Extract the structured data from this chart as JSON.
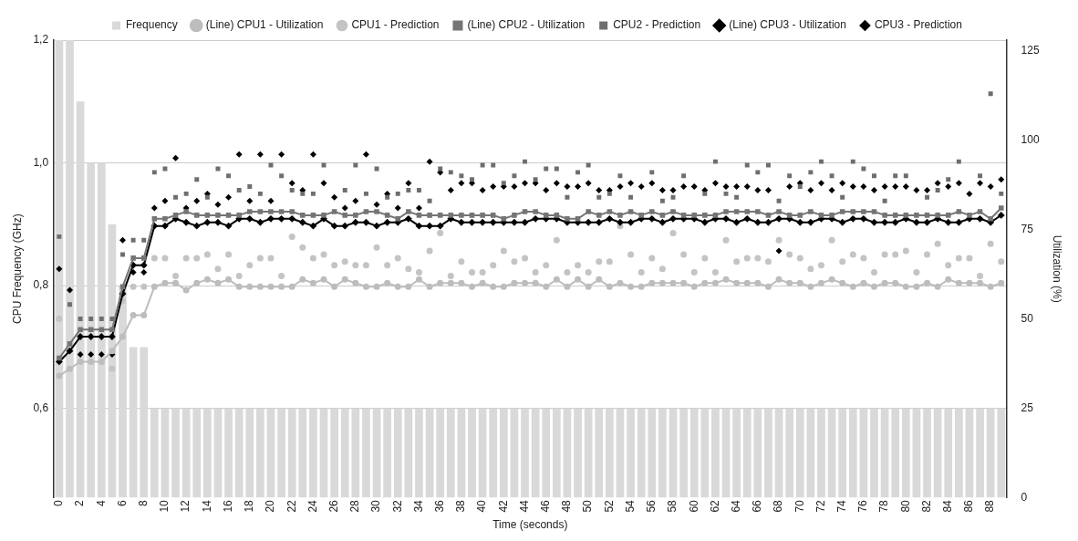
{
  "chart_data": {
    "type": "line",
    "xlabel": "Time (seconds)",
    "ylabel": "CPU Frequency (GHz)",
    "y2label": "Utilization (%)",
    "categories": [
      "0",
      null,
      "2",
      null,
      "4",
      null,
      "6",
      null,
      "8",
      null,
      "10",
      null,
      "12",
      null,
      "14",
      null,
      "16",
      null,
      "18",
      null,
      "20",
      null,
      "22",
      null,
      "24",
      null,
      "26",
      null,
      "28",
      null,
      "30",
      null,
      "32",
      null,
      "34",
      null,
      "36",
      null,
      "38",
      null,
      "40",
      null,
      "42",
      null,
      "44",
      null,
      "46",
      null,
      "48",
      null,
      "50",
      null,
      "52",
      null,
      "54",
      null,
      "56",
      null,
      "58",
      null,
      "60",
      null,
      "62",
      null,
      "64",
      null,
      "66",
      null,
      "68",
      null,
      "70",
      null,
      "72",
      null,
      "74",
      null,
      "76",
      null,
      "78",
      null,
      "80",
      null,
      "82",
      null,
      "84",
      null,
      "86",
      null,
      "88",
      null
    ],
    "ylim": [
      0.455,
      1.2
    ],
    "yticks": [
      {
        "value": 0.6,
        "label": "0,6"
      },
      {
        "value": 0.8,
        "label": "0,8"
      },
      {
        "value": 1.0,
        "label": "1,0"
      },
      {
        "value": 1.2,
        "label": "1,2"
      }
    ],
    "y2lim": [
      0,
      128
    ],
    "y2ticks": [
      0,
      25,
      50,
      75,
      100,
      125
    ],
    "grid": "y",
    "legend": "top",
    "series": [
      {
        "name": "Frequency",
        "type": "bar",
        "color": "#d9d9d9",
        "values": [
          1.2,
          1.2,
          1.1,
          1.0,
          1.0,
          0.9,
          0.8,
          0.7,
          0.7,
          0.6,
          0.6,
          0.6,
          0.6,
          0.6,
          0.6,
          0.6,
          0.6,
          0.6,
          0.6,
          0.6,
          0.6,
          0.6,
          0.6,
          0.6,
          0.6,
          0.6,
          0.6,
          0.6,
          0.6,
          0.6,
          0.6,
          0.6,
          0.6,
          0.6,
          0.6,
          0.6,
          0.6,
          0.6,
          0.6,
          0.6,
          0.6,
          0.6,
          0.6,
          0.6,
          0.6,
          0.6,
          0.6,
          0.6,
          0.6,
          0.6,
          0.6,
          0.6,
          0.6,
          0.6,
          0.6,
          0.6,
          0.6,
          0.6,
          0.6,
          0.6,
          0.6,
          0.6,
          0.6,
          0.6,
          0.6,
          0.6,
          0.6,
          0.6,
          0.6,
          0.6,
          0.6,
          0.6,
          0.6,
          0.6,
          0.6,
          0.6,
          0.6,
          0.6,
          0.6,
          0.6,
          0.6,
          0.6,
          0.6,
          0.6,
          0.6,
          0.6,
          0.6,
          0.6,
          0.6,
          0.6
        ]
      },
      {
        "name": "(Line) CPU1 - Utilization",
        "axis": "y2",
        "marker": "circle",
        "color": "#bdbdbd",
        "values": [
          34,
          36,
          38,
          38,
          38,
          41,
          45,
          51,
          51,
          59,
          60,
          60,
          58,
          60,
          61,
          60,
          61,
          59,
          59,
          59,
          59,
          59,
          59,
          61,
          60,
          61,
          59,
          61,
          60,
          59,
          59,
          60,
          59,
          59,
          61,
          59,
          60,
          60,
          60,
          59,
          60,
          59,
          59,
          60,
          60,
          60,
          59,
          61,
          59,
          61,
          59,
          61,
          59,
          60,
          59,
          59,
          60,
          60,
          60,
          60,
          59,
          60,
          60,
          61,
          60,
          60,
          60,
          59,
          61,
          60,
          60,
          59,
          60,
          61,
          60,
          59,
          60,
          59,
          60,
          60,
          59,
          59,
          60,
          59,
          61,
          60,
          60,
          60,
          59,
          60
        ]
      },
      {
        "name": "CPU1 - Prediction",
        "type": "scatter",
        "axis": "y2",
        "marker": "circle",
        "color": "#c4c4c4",
        "values": [
          50,
          null,
          null,
          null,
          null,
          36,
          55,
          59,
          59,
          67,
          67,
          62,
          67,
          67,
          68,
          64,
          68,
          62,
          65,
          67,
          67,
          62,
          73,
          70,
          67,
          68,
          65,
          66,
          65,
          65,
          70,
          65,
          67,
          64,
          63,
          69,
          74,
          62,
          66,
          63,
          63,
          65,
          69,
          66,
          67,
          63,
          65,
          72,
          63,
          65,
          63,
          66,
          66,
          76,
          68,
          63,
          67,
          64,
          74,
          68,
          63,
          67,
          63,
          72,
          66,
          67,
          67,
          66,
          72,
          68,
          67,
          64,
          65,
          72,
          66,
          68,
          67,
          63,
          68,
          68,
          69,
          63,
          68,
          71,
          65,
          67,
          67,
          62,
          71,
          66
        ]
      },
      {
        "name": "(Line) CPU2 - Utilization",
        "axis": "y2",
        "marker": "square",
        "color": "#757575",
        "values": [
          39,
          43,
          47,
          47,
          47,
          47,
          59,
          67,
          67,
          78,
          78,
          79,
          80,
          79,
          79,
          79,
          79,
          79,
          80,
          80,
          80,
          80,
          80,
          79,
          79,
          79,
          80,
          79,
          79,
          80,
          80,
          79,
          78,
          80,
          79,
          79,
          79,
          79,
          79,
          79,
          79,
          79,
          78,
          79,
          80,
          80,
          79,
          79,
          78,
          78,
          80,
          79,
          80,
          79,
          80,
          79,
          80,
          79,
          80,
          79,
          79,
          79,
          79,
          80,
          80,
          80,
          80,
          79,
          80,
          79,
          79,
          80,
          79,
          79,
          80,
          80,
          80,
          80,
          79,
          79,
          79,
          79,
          79,
          79,
          79,
          80,
          79,
          80,
          78,
          81
        ]
      },
      {
        "name": "CPU2 - Prediction",
        "type": "scatter",
        "axis": "y2",
        "marker": "square",
        "color": "#6e6e6e",
        "values": [
          73,
          54,
          50,
          50,
          50,
          50,
          68,
          72,
          72,
          91,
          92,
          84,
          85,
          89,
          84,
          92,
          90,
          86,
          87,
          85,
          93,
          90,
          86,
          85,
          85,
          93,
          null,
          86,
          93,
          85,
          92,
          84,
          85,
          86,
          86,
          83,
          92,
          91,
          90,
          89,
          93,
          93,
          88,
          90,
          94,
          89,
          92,
          92,
          84,
          91,
          93,
          84,
          85,
          90,
          84,
          null,
          91,
          83,
          84,
          90,
          null,
          85,
          94,
          85,
          84,
          93,
          91,
          93,
          83,
          90,
          87,
          91,
          94,
          90,
          84,
          94,
          92,
          90,
          83,
          90,
          90,
          null,
          84,
          86,
          89,
          94,
          null,
          90,
          113,
          85
        ]
      },
      {
        "name": "(Line) CPU3 - Utilization",
        "axis": "y2",
        "marker": "diamond",
        "color": "#000000",
        "values": [
          38,
          41,
          45,
          45,
          45,
          45,
          57,
          65,
          65,
          76,
          76,
          78,
          77,
          76,
          77,
          77,
          76,
          78,
          78,
          77,
          78,
          78,
          78,
          77,
          76,
          78,
          76,
          76,
          77,
          77,
          76,
          77,
          77,
          78,
          76,
          76,
          76,
          78,
          77,
          77,
          77,
          77,
          77,
          77,
          77,
          78,
          78,
          78,
          77,
          77,
          77,
          77,
          78,
          77,
          77,
          78,
          78,
          77,
          78,
          78,
          78,
          77,
          78,
          78,
          77,
          78,
          77,
          77,
          78,
          78,
          77,
          77,
          78,
          78,
          77,
          78,
          78,
          77,
          77,
          77,
          78,
          77,
          77,
          78,
          77,
          77,
          78,
          78,
          77,
          79
        ]
      },
      {
        "name": "CPU3 - Prediction",
        "type": "scatter",
        "axis": "y2",
        "marker": "diamond",
        "color": "#000000",
        "values": [
          64,
          58,
          40,
          40,
          40,
          40,
          72,
          63,
          63,
          81,
          83,
          95,
          81,
          83,
          85,
          82,
          84,
          96,
          83,
          96,
          83,
          96,
          88,
          86,
          96,
          88,
          84,
          81,
          83,
          96,
          82,
          85,
          81,
          88,
          81,
          94,
          91,
          86,
          88,
          88,
          86,
          87,
          87,
          87,
          88,
          88,
          86,
          88,
          87,
          87,
          88,
          86,
          86,
          87,
          88,
          87,
          88,
          86,
          86,
          87,
          87,
          86,
          88,
          87,
          87,
          87,
          86,
          86,
          69,
          87,
          88,
          86,
          88,
          86,
          88,
          87,
          87,
          86,
          87,
          87,
          87,
          86,
          86,
          88,
          87,
          88,
          85,
          88,
          87,
          89
        ]
      }
    ]
  }
}
